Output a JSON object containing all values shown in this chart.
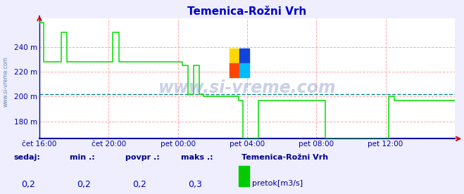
{
  "title": "Temenica-Rožni Vrh",
  "title_color": "#0000cc",
  "bg_color": "#eeeeff",
  "plot_bg_color": "#ffffff",
  "grid_color": "#ffaaaa",
  "watermark": "www.si-vreme.com",
  "yticks": [
    180,
    200,
    220,
    240
  ],
  "ytick_labels": [
    "180 m",
    "200 m",
    "220 m",
    "240 m"
  ],
  "ylim": [
    166,
    263
  ],
  "xlim": [
    0,
    288
  ],
  "xtick_positions": [
    0,
    48,
    96,
    144,
    192,
    240
  ],
  "xtick_labels": [
    "čet 16:00",
    "čet 20:00",
    "pet 00:00",
    "pet 04:00",
    "pet 08:00",
    "pet 12:00"
  ],
  "line_color": "#00dd00",
  "avg_line_value": 202,
  "avg_line_color": "#008888",
  "border_color": "#0000aa",
  "axis_bottom_color": "#0000aa",
  "footer_labels": [
    "sedaj:",
    "min .:",
    "povpr .:",
    "maks .:"
  ],
  "footer_values": [
    "0,2",
    "0,2",
    "0,2",
    "0,3"
  ],
  "footer_station": "Temenica-Rožni Vrh",
  "footer_legend_color": "#00cc00",
  "footer_legend_label": "pretok[m3/s]",
  "logo_colors": [
    "#FFD700",
    "#1144DD",
    "#FF4500",
    "#00BBFF"
  ],
  "series_x": [
    0,
    3,
    3,
    15,
    15,
    19,
    19,
    51,
    51,
    55,
    55,
    99,
    99,
    103,
    103,
    107,
    107,
    111,
    111,
    114,
    114,
    138,
    138,
    141,
    141,
    148,
    148,
    152,
    152,
    198,
    198,
    238,
    238,
    242,
    242,
    246,
    246,
    288
  ],
  "series_y": [
    260,
    260,
    228,
    228,
    252,
    252,
    228,
    228,
    252,
    252,
    228,
    228,
    225,
    225,
    202,
    202,
    225,
    225,
    202,
    202,
    200,
    200,
    197,
    197,
    166,
    166,
    166,
    166,
    197,
    197,
    166,
    166,
    166,
    166,
    200,
    200,
    197,
    197
  ]
}
